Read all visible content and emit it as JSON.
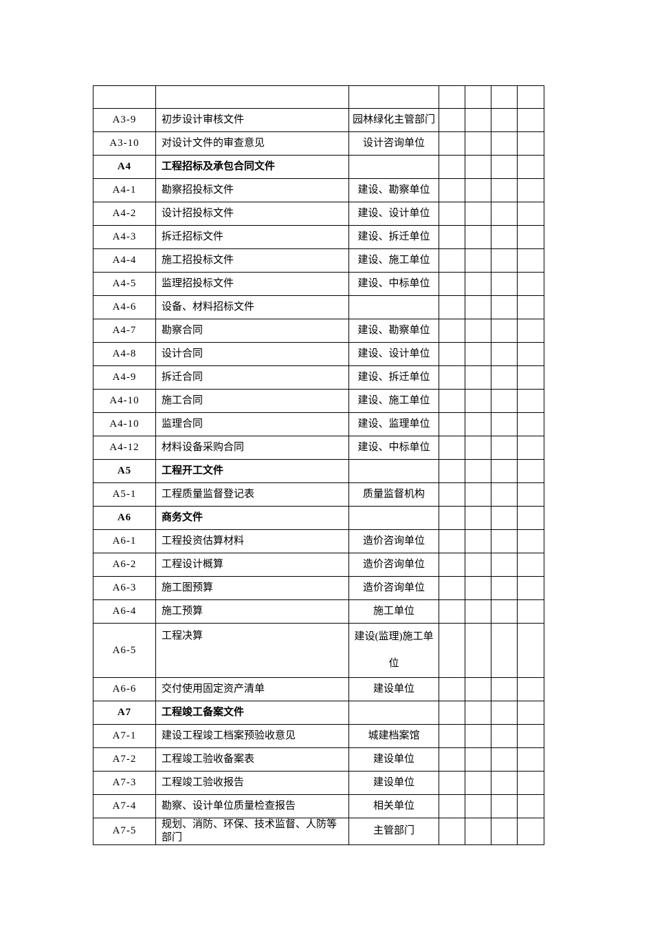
{
  "page": {
    "background_color": "#ffffff",
    "text_color": "#000000",
    "table_border_color": "#000000"
  },
  "table": {
    "column_roles": [
      "code",
      "document-title",
      "responsible-unit",
      "blank",
      "blank",
      "blank",
      "blank"
    ],
    "rows": [
      {
        "code": "",
        "title": "",
        "unit": "",
        "partial": true
      },
      {
        "code": "A3-9",
        "title": "初步设计审核文件",
        "unit": "园林绿化主管部门"
      },
      {
        "code": "A3-10",
        "title": "对设计文件的审查意见",
        "unit": "设计咨询单位"
      },
      {
        "code": "A4",
        "title": "工程招标及承包合同文件",
        "unit": "",
        "section": true
      },
      {
        "code": "A4-1",
        "title": "勘察招投标文件",
        "unit": "建设、勘察单位"
      },
      {
        "code": "A4-2",
        "title": "设计招投标文件",
        "unit": "建设、设计单位"
      },
      {
        "code": "A4-3",
        "title": "拆迁招标文件",
        "unit": "建设、拆迁单位"
      },
      {
        "code": "A4-4",
        "title": "施工招投标文件",
        "unit": "建设、施工单位"
      },
      {
        "code": "A4-5",
        "title": "监理招投标文件",
        "unit": "建设、中标单位"
      },
      {
        "code": "A4-6",
        "title": "设备、材料招标文件",
        "unit": ""
      },
      {
        "code": "A4-7",
        "title": "勘察合同",
        "unit": "建设、勘察单位"
      },
      {
        "code": "A4-8",
        "title": "设计合同",
        "unit": "建设、设计单位"
      },
      {
        "code": "A4-9",
        "title": "拆迁合同",
        "unit": "建设、拆迁单位"
      },
      {
        "code": "A4-10",
        "title": "施工合同",
        "unit": "建设、施工单位"
      },
      {
        "code": "A4-10",
        "title": "监理合同",
        "unit": "建设、监理单位"
      },
      {
        "code": "A4-12",
        "title": "材料设备采购合同",
        "unit": "建设、中标单位"
      },
      {
        "code": "A5",
        "title": "工程开工文件",
        "unit": "",
        "section": true
      },
      {
        "code": "A5-1",
        "title": "工程质量监督登记表",
        "unit": "质量监督机构"
      },
      {
        "code": "A6",
        "title": "商务文件",
        "unit": "",
        "section": true
      },
      {
        "code": "A6-1",
        "title": "工程投资估算材料",
        "unit": "造价咨询单位"
      },
      {
        "code": "A6-2",
        "title": "工程设计概算",
        "unit": "造价咨询单位"
      },
      {
        "code": "A6-3",
        "title": "施工图预算",
        "unit": "造价咨询单位"
      },
      {
        "code": "A6-4",
        "title": "施工预算",
        "unit": "施工单位"
      },
      {
        "code": "A6-5",
        "title": "工程决算",
        "unit": "建设(监理)施工单\n位",
        "tall": true
      },
      {
        "code": "A6-6",
        "title": "交付使用固定资产清单",
        "unit": "建设单位"
      },
      {
        "code": "A7",
        "title": "工程竣工备案文件",
        "unit": "",
        "section": true
      },
      {
        "code": "A7-1",
        "title": "建设工程竣工档案预验收意见",
        "unit": "城建档案馆"
      },
      {
        "code": "A7-2",
        "title": "工程竣工验收备案表",
        "unit": "建设单位"
      },
      {
        "code": "A7-3",
        "title": "工程竣工验收报告",
        "unit": "建设单位"
      },
      {
        "code": "A7-4",
        "title": "勘察、设计单位质量检查报告",
        "unit": "相关单位"
      },
      {
        "code": "A7-5",
        "title": "规划、消防、环保、技术监督、人防等部门",
        "unit": "主管部门"
      }
    ]
  }
}
